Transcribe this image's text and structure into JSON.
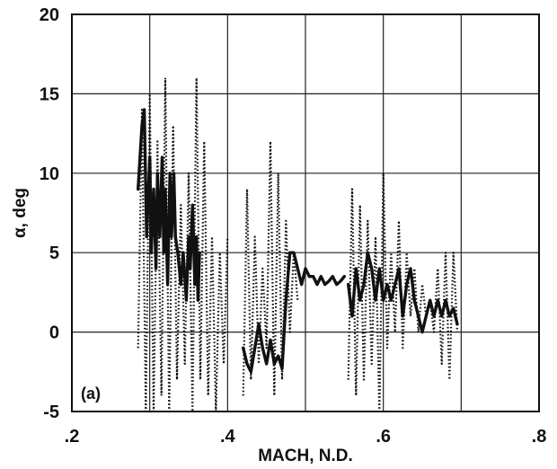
{
  "chart_data": {
    "type": "line",
    "panel_label": "(a)",
    "xlabel": "MACH, N.D.",
    "ylabel": "α, deg",
    "xlim": [
      0.2,
      0.8
    ],
    "ylim": [
      -5,
      20
    ],
    "x_ticks": [
      ".2",
      ".4",
      ".6",
      ".8"
    ],
    "y_ticks": [
      "-5",
      "0",
      "5",
      "10",
      "15",
      "20"
    ],
    "x_grid": [
      0.2,
      0.3,
      0.4,
      0.5,
      0.6,
      0.7,
      0.8
    ],
    "y_grid": [
      -5,
      0,
      5,
      10,
      15,
      20
    ],
    "grid": true,
    "series": [
      {
        "style": "solid",
        "x": [
          0.285,
          0.29,
          0.293,
          0.296,
          0.3,
          0.302,
          0.305,
          0.308,
          0.31,
          0.313,
          0.316,
          0.318,
          0.32,
          0.323,
          0.326,
          0.328,
          0.331,
          0.333,
          0.336,
          0.34,
          0.343,
          0.347,
          0.35,
          0.352,
          0.355,
          0.358,
          0.36,
          0.362,
          0.364
        ],
        "y": [
          9,
          13,
          14,
          6,
          11,
          5,
          9,
          4,
          10,
          6,
          11,
          5,
          9,
          3,
          10,
          6,
          10,
          6,
          5,
          3,
          5,
          2,
          6,
          4,
          8,
          3,
          6,
          2,
          5
        ]
      },
      {
        "style": "solid",
        "x": [
          0.42,
          0.425,
          0.43,
          0.435,
          0.44,
          0.445,
          0.45,
          0.455,
          0.46,
          0.465,
          0.47,
          0.475,
          0.48,
          0.485,
          0.49,
          0.495,
          0.5,
          0.505,
          0.51,
          0.515,
          0.52,
          0.525,
          0.53,
          0.535,
          0.54,
          0.545,
          0.55
        ],
        "y": [
          -1,
          -2,
          -2.5,
          -1,
          0.5,
          -1,
          -2,
          -0.5,
          -2,
          -1.5,
          -2.3,
          2,
          5,
          5,
          4,
          3,
          4,
          3.5,
          3.5,
          3,
          3.5,
          3,
          3.2,
          3.5,
          3,
          3.2,
          3.5
        ]
      },
      {
        "style": "solid",
        "x": [
          0.555,
          0.56,
          0.565,
          0.57,
          0.575,
          0.58,
          0.585,
          0.59,
          0.595,
          0.6,
          0.605,
          0.61,
          0.615,
          0.62,
          0.625,
          0.63,
          0.635,
          0.64,
          0.645,
          0.65,
          0.655,
          0.66,
          0.665,
          0.67,
          0.675,
          0.68,
          0.685,
          0.69,
          0.695
        ],
        "y": [
          3,
          1,
          4,
          2,
          3,
          5,
          4,
          2,
          4,
          2,
          3,
          2,
          3,
          4,
          1,
          3,
          4,
          2,
          1,
          0,
          1,
          2,
          1,
          2,
          1,
          2,
          1,
          1.5,
          0.5
        ]
      },
      {
        "style": "dotted",
        "x": [
          0.285,
          0.29,
          0.295,
          0.3,
          0.305,
          0.31,
          0.315,
          0.32,
          0.325,
          0.33,
          0.335,
          0.34,
          0.345,
          0.35,
          0.355,
          0.36,
          0.365,
          0.37,
          0.375,
          0.38,
          0.385,
          0.39,
          0.395,
          0.4
        ],
        "y": [
          -1,
          14,
          -5,
          15,
          -5,
          12,
          -4,
          16,
          -5,
          13,
          -3,
          8,
          -2,
          10,
          -5,
          16,
          -3,
          12,
          -4,
          6,
          -5,
          5,
          -2,
          6
        ]
      },
      {
        "style": "dotted",
        "x": [
          0.42,
          0.425,
          0.43,
          0.435,
          0.44,
          0.445,
          0.45,
          0.455,
          0.46,
          0.465,
          0.47,
          0.475,
          0.48,
          0.485,
          0.49
        ],
        "y": [
          -4,
          9,
          -3,
          6,
          -2,
          4,
          -1,
          12,
          -4,
          10,
          -3,
          7,
          0,
          5,
          2
        ]
      },
      {
        "style": "dotted",
        "x": [
          0.555,
          0.56,
          0.565,
          0.57,
          0.575,
          0.58,
          0.585,
          0.59,
          0.595,
          0.6,
          0.605,
          0.61,
          0.615,
          0.62,
          0.625,
          0.63,
          0.635,
          0.64,
          0.645,
          0.65,
          0.655,
          0.66,
          0.665,
          0.67,
          0.675,
          0.68,
          0.685,
          0.69,
          0.695
        ],
        "y": [
          -3,
          9,
          -4,
          8,
          -3,
          7,
          -2,
          6,
          -5,
          10,
          -1,
          5,
          0,
          7,
          -1,
          5,
          1,
          4,
          0,
          3,
          1,
          2,
          0,
          4,
          -2,
          5,
          -3,
          5,
          0
        ]
      }
    ]
  }
}
